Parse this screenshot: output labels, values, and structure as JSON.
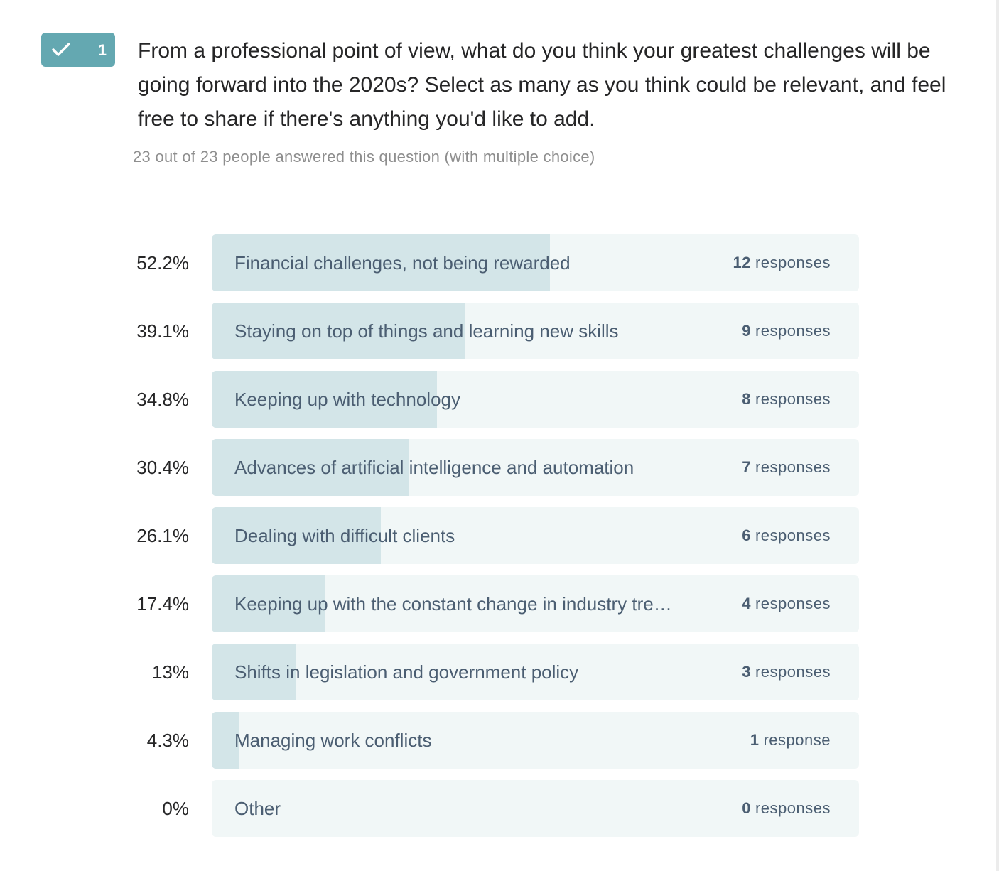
{
  "question": {
    "number": "1",
    "title": "From a professional point of view, what do you think your greatest challenges will be going forward into the 2020s? Select as many as you think could be relevant, and feel free to share if there's anything you'd like to add.",
    "subtitle": "23 out of 23 people answered this question (with multiple choice)"
  },
  "chart_data": {
    "type": "bar",
    "orientation": "horizontal",
    "categories": [
      "Financial challenges, not being rewarded",
      "Staying on top of things and learning new skills",
      "Keeping up with technology",
      "Advances of artificial intelligence and automation",
      "Dealing with difficult clients",
      "Keeping up with the constant change in industry tre…",
      "Shifts in legislation and government policy",
      "Managing work conflicts",
      "Other"
    ],
    "values": [
      52.2,
      39.1,
      34.8,
      30.4,
      26.1,
      17.4,
      13,
      4.3,
      0
    ],
    "percent_labels": [
      "52.2%",
      "39.1%",
      "34.8%",
      "30.4%",
      "26.1%",
      "17.4%",
      "13%",
      "4.3%",
      "0%"
    ],
    "counts": [
      "12",
      "9",
      "8",
      "7",
      "6",
      "4",
      "3",
      "1",
      "0"
    ],
    "count_units": [
      "responses",
      "responses",
      "responses",
      "responses",
      "responses",
      "responses",
      "responses",
      "response",
      "responses"
    ],
    "xlim": [
      0,
      100
    ]
  },
  "colors": {
    "accent": "#64a8b1",
    "fill": "#d3e5e8",
    "track": "#f1f7f7"
  }
}
